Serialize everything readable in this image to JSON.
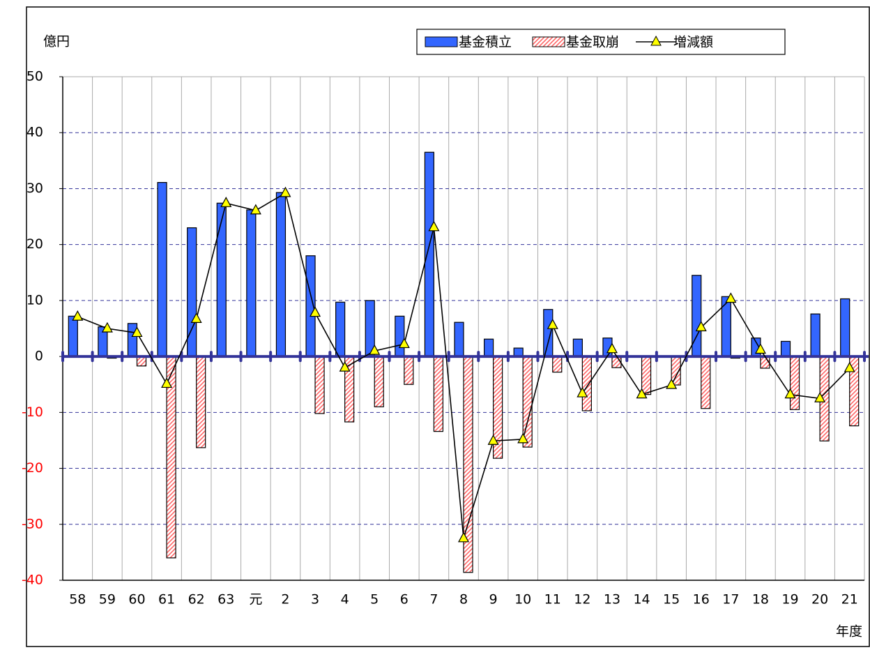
{
  "chart_data": {
    "type": "bar_line",
    "y_unit_label": "億円",
    "x_axis_label": "年度",
    "categories": [
      "58",
      "59",
      "60",
      "61",
      "62",
      "63",
      "元",
      "2",
      "3",
      "4",
      "5",
      "6",
      "7",
      "8",
      "9",
      "10",
      "11",
      "12",
      "13",
      "14",
      "15",
      "16",
      "17",
      "18",
      "19",
      "20",
      "21"
    ],
    "series": [
      {
        "name": "基金積立",
        "kind": "bar",
        "color": "#3366ff",
        "values": [
          7.2,
          5.3,
          5.9,
          31.1,
          23,
          27.4,
          26.2,
          29.3,
          18,
          9.7,
          10,
          7.2,
          36.5,
          6.1,
          3.1,
          1.5,
          8.4,
          3.1,
          3.3,
          0,
          0,
          14.5,
          10.7,
          3.3,
          2.7,
          7.6,
          10.3
        ]
      },
      {
        "name": "基金取崩",
        "kind": "bar",
        "color": "#ff9999",
        "values": [
          0,
          -0.3,
          -1.7,
          -36,
          -16.3,
          0,
          0,
          0,
          -10.2,
          -11.7,
          -9,
          -5,
          -13.4,
          -38.6,
          -18.2,
          -16.2,
          -2.8,
          -9.7,
          -2,
          -6.8,
          -5.1,
          -9.3,
          -0.3,
          -2.1,
          -9.5,
          -15.1,
          -12.4
        ]
      },
      {
        "name": "増減額",
        "kind": "line",
        "color": "#000000",
        "marker_color": "#ffff00",
        "values": [
          7.1,
          5,
          4.2,
          -4.9,
          6.7,
          27.4,
          26.1,
          29.2,
          7.8,
          -2,
          1,
          2.2,
          23.1,
          -32.5,
          -15.1,
          -14.8,
          5.6,
          -6.6,
          1.3,
          -6.8,
          -5.1,
          5.2,
          10.3,
          1.2,
          -6.8,
          -7.5,
          -2.1
        ]
      }
    ],
    "ylim": [
      -40,
      50
    ],
    "yticks": [
      -40,
      -30,
      -20,
      -10,
      0,
      10,
      20,
      30,
      40,
      50
    ],
    "grid": true,
    "legend": "top-right"
  }
}
